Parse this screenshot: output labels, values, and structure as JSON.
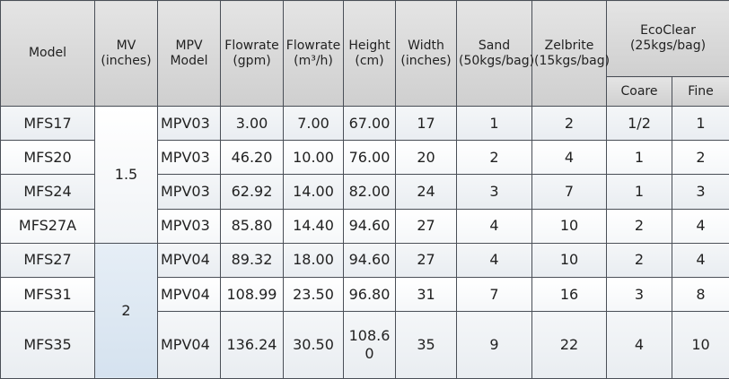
{
  "table": {
    "header": [
      [
        "Model"
      ],
      [
        "MV",
        "(inches)"
      ],
      [
        "MPV",
        "Model"
      ],
      [
        "Flowrate",
        "(gpm)"
      ],
      [
        "Flowrate",
        "(m³/h)"
      ],
      [
        "Height",
        "(cm)"
      ],
      [
        "Width",
        "(inches)"
      ],
      [
        "Sand",
        "(50kgs/bag)"
      ],
      [
        "Zelbrite",
        "(15kgs/bag)"
      ],
      [
        "EcoClear",
        "(25kgs/bag)"
      ]
    ],
    "subheader": [
      "Coare",
      "Fine"
    ],
    "mv": [
      "1.5",
      "2"
    ],
    "rows": [
      [
        "MFS17",
        "MPV03",
        "3.00",
        "7.00",
        "67.00",
        "17",
        "1",
        "2",
        "1/2",
        "1"
      ],
      [
        "MFS20",
        "MPV03",
        "46.20",
        "10.00",
        "76.00",
        "20",
        "2",
        "4",
        "1",
        "2"
      ],
      [
        "MFS24",
        "MPV03",
        "62.92",
        "14.00",
        "82.00",
        "24",
        "3",
        "7",
        "1",
        "3"
      ],
      [
        "MFS27A",
        "MPV03",
        "85.80",
        "14.40",
        "94.60",
        "27",
        "4",
        "10",
        "2",
        "4"
      ],
      [
        "MFS27",
        "MPV04",
        "89.32",
        "18.00",
        "94.60",
        "27",
        "4",
        "10",
        "2",
        "4"
      ],
      [
        "MFS31",
        "MPV04",
        "108.99",
        "23.50",
        "96.80",
        "31",
        "7",
        "16",
        "3",
        "8"
      ],
      [
        "MFS35",
        "MPV04",
        "136.24",
        "30.50",
        "108.60",
        "35",
        "9",
        "22",
        "4",
        "10"
      ]
    ]
  }
}
